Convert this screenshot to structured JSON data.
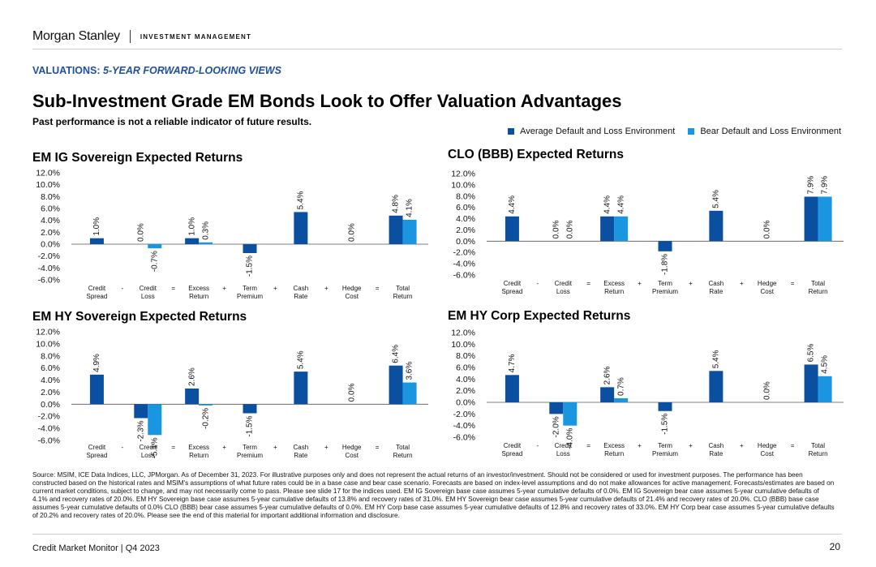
{
  "header": {
    "brand": "Morgan Stanley",
    "division": "INVESTMENT MANAGEMENT",
    "section_prefix": "VALUATIONS: ",
    "section_italic": "5-YEAR FORWARD-LOOKING VIEWS",
    "title": "Sub-Investment Grade EM Bonds Look to Offer Valuation Advantages",
    "subtitle": "Past performance is not a reliable indicator of future results."
  },
  "legend": [
    {
      "label": "Average Default and Loss Environment",
      "color": "#0b4fa0"
    },
    {
      "label": "Bear Default and Loss Environment",
      "color": "#1a96e0"
    }
  ],
  "colors": {
    "average": "#0b4fa0",
    "bear": "#1a96e0",
    "brand_blue": "#1f4fa3"
  },
  "chart_data": [
    {
      "type": "bar",
      "title": "EM IG Sovereign Expected Returns",
      "categories": [
        "Credit\nSpread",
        "Credit\nLoss",
        "Excess\nReturn",
        "Term\nPremium",
        "Cash\nRate",
        "Hedge\nCost",
        "Total\nReturn"
      ],
      "operators": [
        "-",
        "=",
        "+",
        "+",
        "+",
        "="
      ],
      "series": [
        {
          "name": "Average Default and Loss Environment",
          "values": [
            1.0,
            0.0,
            1.0,
            -1.5,
            5.4,
            0.0,
            4.8
          ]
        },
        {
          "name": "Bear Default and Loss Environment",
          "values": [
            null,
            -0.7,
            0.3,
            null,
            null,
            null,
            4.1
          ]
        }
      ],
      "yticks": [
        "12.0%",
        "10.0%",
        "8.0%",
        "6.0%",
        "4.0%",
        "2.0%",
        "0.0%",
        "-2.0%",
        "-4.0%",
        "-6.0%"
      ],
      "ylim": [
        -6,
        12
      ],
      "grid": false
    },
    {
      "type": "bar",
      "title": "CLO (BBB) Expected Returns",
      "categories": [
        "Credit\nSpread",
        "Credit\nLoss",
        "Excess\nReturn",
        "Term\nPremium",
        "Cash\nRate",
        "Hedge\nCost",
        "Total\nReturn"
      ],
      "operators": [
        "-",
        "=",
        "+",
        "+",
        "+",
        "="
      ],
      "series": [
        {
          "name": "Average Default and Loss Environment",
          "values": [
            4.4,
            0.0,
            4.4,
            -1.8,
            5.4,
            0.0,
            7.9
          ]
        },
        {
          "name": "Bear Default and Loss Environment",
          "values": [
            null,
            0.0,
            4.4,
            null,
            null,
            null,
            7.9
          ]
        }
      ],
      "yticks": [
        "12.0%",
        "10.0%",
        "8.0%",
        "6.0%",
        "4.0%",
        "2.0%",
        "0.0%",
        "-2.0%",
        "-4.0%",
        "-6.0%"
      ],
      "ylim": [
        -6,
        12
      ],
      "grid": false
    },
    {
      "type": "bar",
      "title": "EM HY Sovereign Expected Returns",
      "categories": [
        "Credit\nSpread",
        "Credit\nLoss",
        "Excess\nReturn",
        "Term\nPremium",
        "Cash\nRate",
        "Hedge\nCost",
        "Total\nReturn"
      ],
      "operators": [
        "-",
        "=",
        "+",
        "+",
        "+",
        "="
      ],
      "series": [
        {
          "name": "Average Default and Loss Environment",
          "values": [
            4.9,
            -2.3,
            2.6,
            -1.5,
            5.4,
            0.0,
            6.4
          ]
        },
        {
          "name": "Bear Default and Loss Environment",
          "values": [
            null,
            -5.1,
            -0.2,
            null,
            null,
            null,
            3.6
          ]
        }
      ],
      "yticks": [
        "12.0%",
        "10.0%",
        "8.0%",
        "6.0%",
        "4.0%",
        "2.0%",
        "0.0%",
        "-2.0%",
        "-4.0%",
        "-6.0%"
      ],
      "ylim": [
        -6,
        12
      ],
      "grid": false
    },
    {
      "type": "bar",
      "title": "EM HY Corp Expected Returns",
      "categories": [
        "Credit\nSpread",
        "Credit\nLoss",
        "Excess\nReturn",
        "Term\nPremium",
        "Cash\nRate",
        "Hedge\nCost",
        "Total\nReturn"
      ],
      "operators": [
        "-",
        "=",
        "+",
        "+",
        "+",
        "="
      ],
      "series": [
        {
          "name": "Average Default and Loss Environment",
          "values": [
            4.7,
            -2.0,
            2.6,
            -1.5,
            5.4,
            0.0,
            6.5
          ]
        },
        {
          "name": "Bear Default and Loss Environment",
          "values": [
            null,
            -4.0,
            0.7,
            null,
            null,
            null,
            4.5
          ]
        }
      ],
      "yticks": [
        "12.0%",
        "10.0%",
        "8.0%",
        "6.0%",
        "4.0%",
        "2.0%",
        "0.0%",
        "-2.0%",
        "-4.0%",
        "-6.0%"
      ],
      "ylim": [
        -6,
        12
      ],
      "grid": false
    }
  ],
  "footnote": "Source: MSIM, ICE Data Indices, LLC, JPMorgan. As of December 31, 2023. For illustrative purposes only and does not represent the actual returns of an investor/investment. Should not be considered or used for investment purposes. The performance has been constructed based on the historical rates and MSIM's assumptions of what future rates could be in a base case and bear case scenario. Forecasts are based on index-level assumptions and do not make allowances for active management. Forecasts/estimates are based on current market conditions, subject to change, and may not necessarily come to pass. Please see slide 17 for the indices used. EM IG Sovereign base case assumes 5-year cumulative defaults of 0.0%. EM IG Sovereign bear case assumes 5-year cumulative defaults of 4.1% and recovery rates of 20.0%. EM HY Sovereign base case assumes 5-year cumulative defaults of 13.8% and recovery rates of 31.0%. EM HY Sovereign bear case assumes 5-year cumulative defaults of 21.4% and recovery rates of 20.0%. CLO (BBB) base case assumes 5-year cumulative defaults of 0.0% CLO (BBB) bear case assumes 5-year cumulative defaults of 0.0%. EM HY Corp base case assumes 5-year cumulative defaults of 12.8% and recovery rates of 33.0%. EM HY Corp bear case assumes 5-year cumulative defaults of 20.2% and recovery rates of 20.0%. Please see the end of this material for important additional information and disclosure.",
  "footer": {
    "left": "Credit Market Monitor | Q4 2023",
    "page": "20"
  }
}
